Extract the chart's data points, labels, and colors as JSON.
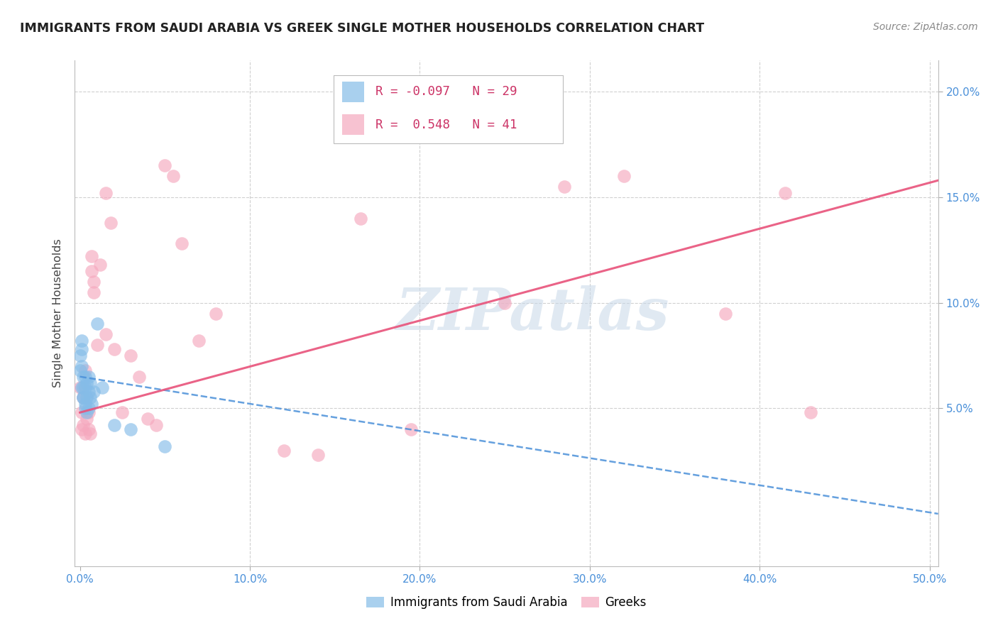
{
  "title": "IMMIGRANTS FROM SAUDI ARABIA VS GREEK SINGLE MOTHER HOUSEHOLDS CORRELATION CHART",
  "source": "Source: ZipAtlas.com",
  "ylabel": "Single Mother Households",
  "xlim": [
    -0.003,
    0.505
  ],
  "ylim": [
    -0.025,
    0.215
  ],
  "xtick_vals": [
    0.0,
    0.1,
    0.2,
    0.3,
    0.4,
    0.5
  ],
  "xtick_labels": [
    "0.0%",
    "10.0%",
    "20.0%",
    "30.0%",
    "40.0%",
    "50.0%"
  ],
  "ytick_right_vals": [
    0.05,
    0.1,
    0.15,
    0.2
  ],
  "ytick_right_labels": [
    "5.0%",
    "10.0%",
    "15.0%",
    "20.0%"
  ],
  "legend_blue_label": "Immigrants from Saudi Arabia",
  "legend_pink_label": "Greeks",
  "legend_blue_R": "-0.097",
  "legend_blue_N": "29",
  "legend_pink_R": "0.548",
  "legend_pink_N": "41",
  "blue_color": "#85bce8",
  "pink_color": "#f5a8be",
  "blue_line_color": "#4a90d9",
  "pink_line_color": "#e8527a",
  "watermark": "ZIPatlas",
  "background_color": "#ffffff",
  "grid_color": "#d0d0d0",
  "blue_x": [
    0.0,
    0.0,
    0.001,
    0.001,
    0.001,
    0.001,
    0.002,
    0.002,
    0.002,
    0.002,
    0.003,
    0.003,
    0.003,
    0.003,
    0.004,
    0.004,
    0.004,
    0.005,
    0.005,
    0.005,
    0.006,
    0.006,
    0.007,
    0.008,
    0.01,
    0.013,
    0.02,
    0.03,
    0.05
  ],
  "blue_y": [
    0.068,
    0.075,
    0.06,
    0.07,
    0.078,
    0.082,
    0.055,
    0.06,
    0.065,
    0.055,
    0.052,
    0.06,
    0.065,
    0.05,
    0.055,
    0.062,
    0.048,
    0.058,
    0.065,
    0.05,
    0.055,
    0.062,
    0.052,
    0.058,
    0.09,
    0.06,
    0.042,
    0.04,
    0.032
  ],
  "pink_x": [
    0.0,
    0.001,
    0.001,
    0.002,
    0.002,
    0.003,
    0.003,
    0.004,
    0.005,
    0.005,
    0.006,
    0.007,
    0.007,
    0.008,
    0.008,
    0.01,
    0.012,
    0.015,
    0.018,
    0.025,
    0.03,
    0.035,
    0.04,
    0.05,
    0.055,
    0.06,
    0.07,
    0.08,
    0.12,
    0.14,
    0.165,
    0.195,
    0.25,
    0.285,
    0.32,
    0.38,
    0.415,
    0.43,
    0.015,
    0.02,
    0.045
  ],
  "pink_y": [
    0.06,
    0.048,
    0.04,
    0.055,
    0.042,
    0.068,
    0.038,
    0.045,
    0.048,
    0.04,
    0.038,
    0.115,
    0.122,
    0.11,
    0.105,
    0.08,
    0.118,
    0.152,
    0.138,
    0.048,
    0.075,
    0.065,
    0.045,
    0.165,
    0.16,
    0.128,
    0.082,
    0.095,
    0.03,
    0.028,
    0.14,
    0.04,
    0.1,
    0.155,
    0.16,
    0.095,
    0.152,
    0.048,
    0.085,
    0.078,
    0.042
  ],
  "blue_line_x0": 0.0,
  "blue_line_x1": 0.505,
  "blue_line_y0": 0.065,
  "blue_line_y1": 0.0,
  "pink_line_x0": 0.0,
  "pink_line_x1": 0.505,
  "pink_line_y0": 0.048,
  "pink_line_y1": 0.158
}
